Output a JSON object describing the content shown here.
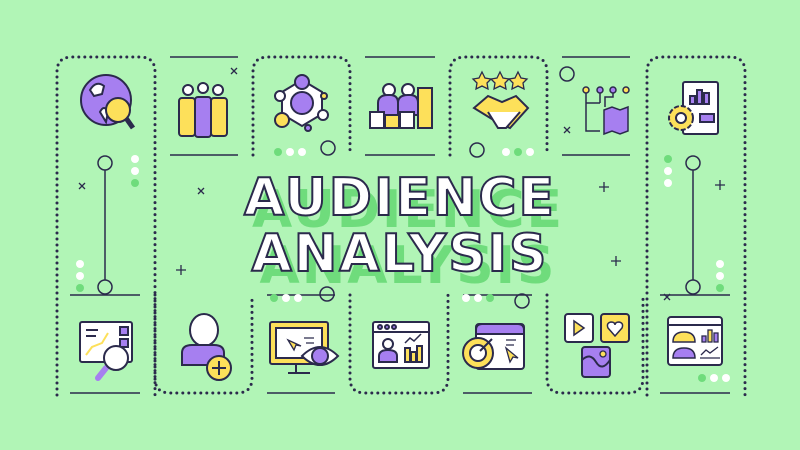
{
  "title": {
    "line1": "AUDIENCE",
    "line2": "ANALYSIS"
  },
  "colors": {
    "background": "#b1f5b6",
    "purple": "#a67ff0",
    "yellow": "#fde05a",
    "outline": "#2b2a4c",
    "accent_green": "#6fdc7c"
  },
  "icons_top": [
    "globe-search-icon",
    "team-icon",
    "network-icon",
    "audience-growth-icon",
    "partnership-rating-icon",
    "roadmap-icon",
    "settings-report-icon"
  ],
  "icons_bottom": [
    "data-analysis-icon",
    "add-user-icon",
    "monitor-view-icon",
    "web-analytics-icon",
    "targeting-icon",
    "media-content-icon",
    "dashboard-icon"
  ]
}
